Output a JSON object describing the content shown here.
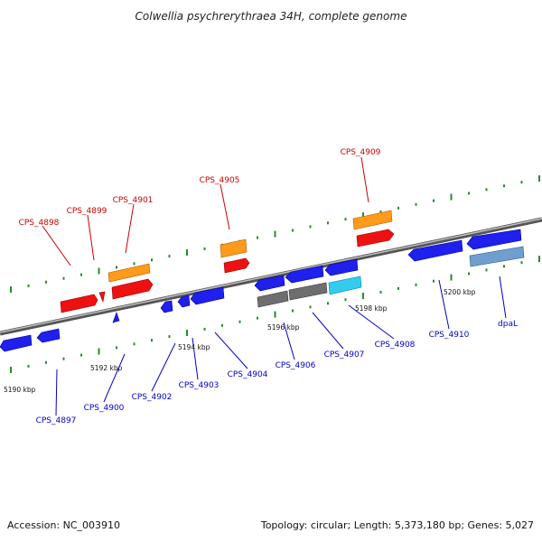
{
  "title": "Colwellia psychrerythraea 34H, complete genome",
  "footer": {
    "accession": "Accession: NC_003910",
    "summary": "Topology: circular; Length: 5,373,180 bp; Genes: 5,027"
  },
  "colors": {
    "red": "#ee1111",
    "orange": "#ff9a1a",
    "blue": "#1f1fee",
    "gray": "#6e6e6e",
    "cyan": "#33ccee",
    "steel": "#6f9fcf",
    "tick_green": "#2a8a2a",
    "label_red": "#cc0000",
    "label_blue": "#0000cc"
  },
  "ticks": [
    "5190 kbp",
    "5192 kbp",
    "5194 kbp",
    "5196 kbp",
    "5198 kbp",
    "5200 kbp"
  ],
  "labels_top": [
    "CPS_4898",
    "CPS_4899",
    "CPS_4901",
    "CPS_4905",
    "CPS_4909"
  ],
  "labels_bottom": [
    "CPS_4897",
    "CPS_4900",
    "CPS_4902",
    "CPS_4903",
    "CPS_4904",
    "CPS_4906",
    "CPS_4907",
    "CPS_4908",
    "CPS_4910",
    "dpaL"
  ]
}
